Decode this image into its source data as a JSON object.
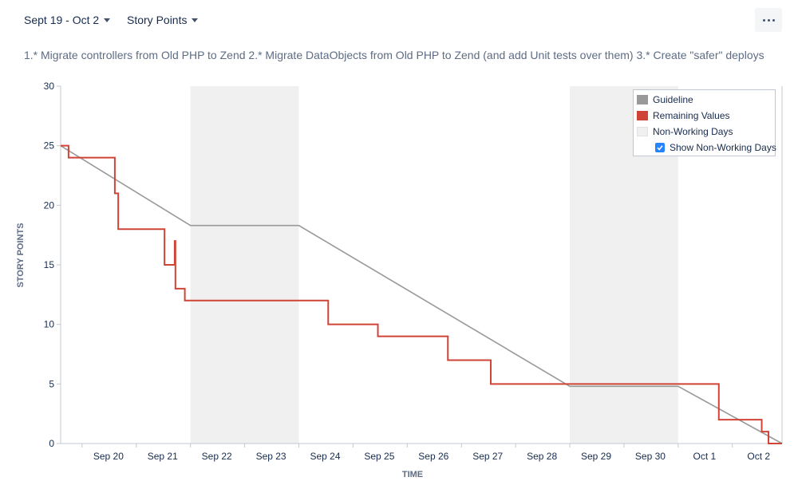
{
  "toolbar": {
    "date_range_label": "Sept 19 - Oct 2",
    "metric_label": "Story Points"
  },
  "subtitle": "1.* Migrate controllers from Old PHP to Zend 2.* Migrate DataObjects from Old PHP to Zend (and add Unit tests over them) 3.* Create \"safer\" deploys",
  "colors": {
    "guideline": "#999999",
    "remaining": "#d04437",
    "non_working": "#f0f0f0",
    "checkbox": "#2684ff"
  },
  "legend": {
    "guideline": "Guideline",
    "remaining": "Remaining Values",
    "non_working": "Non-Working Days",
    "show_non_working": "Show Non-Working Days",
    "show_non_working_checked": true
  },
  "chart_data": {
    "type": "line",
    "xlabel": "TIME",
    "ylabel": "STORY POINTS",
    "ylim": [
      0,
      30
    ],
    "yticks": [
      0,
      5,
      10,
      15,
      20,
      25,
      30
    ],
    "xlim": [
      "Sep 19 14:30",
      "Oct 2 22:00"
    ],
    "x_tick_labels": [
      "Sep 20",
      "Sep 21",
      "Sep 22",
      "Sep 23",
      "Sep 24",
      "Sep 25",
      "Sep 26",
      "Sep 27",
      "Sep 28",
      "Sep 29",
      "Sep 30",
      "Oct 1",
      "Oct 2"
    ],
    "non_working_periods": [
      {
        "start": "Sep 22",
        "end": "Sep 24"
      },
      {
        "start": "Sep 29",
        "end": "Oct 1"
      }
    ],
    "legend_position": "top-right",
    "series": [
      {
        "name": "Guideline",
        "points": [
          {
            "x": "Sep 19 14:30",
            "y": 25
          },
          {
            "x": "Sep 22 00:00",
            "y": 18.3
          },
          {
            "x": "Sep 24 00:00",
            "y": 18.3
          },
          {
            "x": "Sep 29 00:00",
            "y": 4.8
          },
          {
            "x": "Oct 1 00:00",
            "y": 4.8
          },
          {
            "x": "Oct 2 22:00",
            "y": 0
          }
        ]
      },
      {
        "name": "Remaining Values",
        "step": true,
        "points": [
          {
            "x": "Sep 19 14:30",
            "y": 25
          },
          {
            "x": "Sep 19 18:00",
            "y": 24
          },
          {
            "x": "Sep 20 14:30",
            "y": 21
          },
          {
            "x": "Sep 20 16:00",
            "y": 18
          },
          {
            "x": "Sep 21 12:30",
            "y": 15
          },
          {
            "x": "Sep 21 17:00",
            "y": 17
          },
          {
            "x": "Sep 21 17:20",
            "y": 13
          },
          {
            "x": "Sep 21 21:30",
            "y": 12
          },
          {
            "x": "Sep 24 13:00",
            "y": 10
          },
          {
            "x": "Sep 25 11:00",
            "y": 9
          },
          {
            "x": "Sep 26 18:00",
            "y": 7
          },
          {
            "x": "Sep 27 13:00",
            "y": 5
          },
          {
            "x": "Oct 1 18:00",
            "y": 2
          },
          {
            "x": "Oct 2 13:00",
            "y": 1
          },
          {
            "x": "Oct 2 16:00",
            "y": 0
          }
        ],
        "end": "Oct 2 22:00"
      }
    ]
  }
}
